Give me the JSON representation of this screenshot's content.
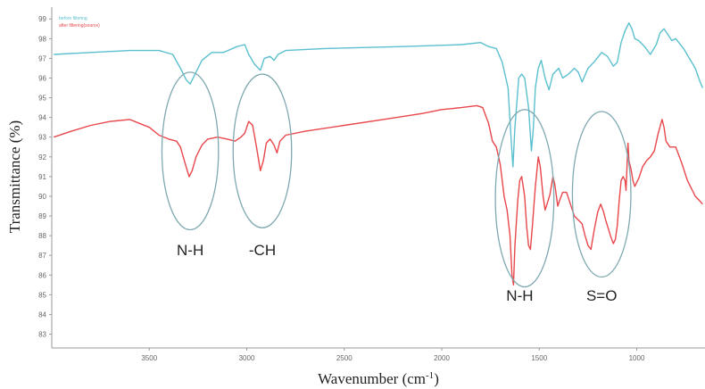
{
  "chart_data": {
    "type": "line",
    "title": "",
    "xlabel": "Wavenumber (cm",
    "xlabel_sup": "-1",
    "xlabel_close": ")",
    "ylabel": "Transmittance (%)",
    "xlim": [
      4000,
      650
    ],
    "ylim": [
      82.3,
      99.6
    ],
    "xticks": [
      3500,
      3000,
      2500,
      2000,
      1500,
      1000
    ],
    "yticks": [
      83,
      84,
      85,
      86,
      87,
      88,
      89,
      90,
      91,
      92,
      93,
      94,
      95,
      96,
      97,
      98,
      99
    ],
    "grid": false,
    "legend_position": "top-left",
    "series": [
      {
        "name": "before filtering",
        "color": "#5bc0ce",
        "points": [
          [
            3990,
            97.2
          ],
          [
            3800,
            97.3
          ],
          [
            3600,
            97.4
          ],
          [
            3450,
            97.4
          ],
          [
            3380,
            97.2
          ],
          [
            3340,
            96.5
          ],
          [
            3310,
            95.9
          ],
          [
            3290,
            95.7
          ],
          [
            3270,
            96.1
          ],
          [
            3230,
            96.9
          ],
          [
            3180,
            97.3
          ],
          [
            3120,
            97.3
          ],
          [
            3050,
            97.6
          ],
          [
            3010,
            97.7
          ],
          [
            2990,
            97.2
          ],
          [
            2960,
            96.7
          ],
          [
            2930,
            96.4
          ],
          [
            2910,
            97.0
          ],
          [
            2880,
            97.1
          ],
          [
            2860,
            96.9
          ],
          [
            2840,
            97.2
          ],
          [
            2800,
            97.4
          ],
          [
            2600,
            97.5
          ],
          [
            2200,
            97.6
          ],
          [
            1900,
            97.7
          ],
          [
            1800,
            97.8
          ],
          [
            1760,
            97.6
          ],
          [
            1720,
            97.5
          ],
          [
            1690,
            96.8
          ],
          [
            1660,
            95.5
          ],
          [
            1645,
            93.0
          ],
          [
            1635,
            91.5
          ],
          [
            1625,
            93.5
          ],
          [
            1605,
            96.0
          ],
          [
            1590,
            96.2
          ],
          [
            1575,
            96.0
          ],
          [
            1555,
            94.5
          ],
          [
            1540,
            92.3
          ],
          [
            1530,
            93.5
          ],
          [
            1520,
            95.5
          ],
          [
            1505,
            96.5
          ],
          [
            1490,
            96.9
          ],
          [
            1470,
            96.0
          ],
          [
            1450,
            95.4
          ],
          [
            1430,
            96.2
          ],
          [
            1400,
            96.5
          ],
          [
            1380,
            96.0
          ],
          [
            1350,
            96.2
          ],
          [
            1320,
            96.5
          ],
          [
            1300,
            96.3
          ],
          [
            1280,
            95.8
          ],
          [
            1250,
            96.5
          ],
          [
            1220,
            96.8
          ],
          [
            1180,
            97.3
          ],
          [
            1150,
            97.1
          ],
          [
            1120,
            96.6
          ],
          [
            1100,
            96.8
          ],
          [
            1080,
            97.8
          ],
          [
            1060,
            98.4
          ],
          [
            1040,
            98.8
          ],
          [
            1025,
            98.5
          ],
          [
            1010,
            98.0
          ],
          [
            990,
            97.9
          ],
          [
            960,
            97.6
          ],
          [
            930,
            97.2
          ],
          [
            900,
            97.7
          ],
          [
            880,
            98.3
          ],
          [
            860,
            98.5
          ],
          [
            840,
            98.2
          ],
          [
            820,
            97.9
          ],
          [
            800,
            98.0
          ],
          [
            760,
            97.5
          ],
          [
            730,
            97.0
          ],
          [
            700,
            96.5
          ],
          [
            675,
            95.8
          ],
          [
            662,
            95.5
          ]
        ]
      },
      {
        "name": "after filtering(source)",
        "color": "#e8474c",
        "points": [
          [
            3990,
            93.0
          ],
          [
            3900,
            93.3
          ],
          [
            3800,
            93.6
          ],
          [
            3700,
            93.8
          ],
          [
            3600,
            93.9
          ],
          [
            3550,
            93.7
          ],
          [
            3500,
            93.5
          ],
          [
            3450,
            93.1
          ],
          [
            3400,
            92.9
          ],
          [
            3360,
            92.8
          ],
          [
            3340,
            92.5
          ],
          [
            3320,
            91.8
          ],
          [
            3305,
            91.3
          ],
          [
            3295,
            91.0
          ],
          [
            3280,
            91.3
          ],
          [
            3260,
            92.0
          ],
          [
            3230,
            92.6
          ],
          [
            3200,
            92.9
          ],
          [
            3150,
            93.0
          ],
          [
            3100,
            92.9
          ],
          [
            3060,
            92.8
          ],
          [
            3030,
            93.0
          ],
          [
            3010,
            93.2
          ],
          [
            2990,
            93.8
          ],
          [
            2970,
            93.6
          ],
          [
            2950,
            92.5
          ],
          [
            2930,
            91.3
          ],
          [
            2915,
            91.8
          ],
          [
            2900,
            92.7
          ],
          [
            2880,
            92.9
          ],
          [
            2860,
            92.6
          ],
          [
            2845,
            92.2
          ],
          [
            2830,
            92.8
          ],
          [
            2800,
            93.1
          ],
          [
            2700,
            93.3
          ],
          [
            2500,
            93.6
          ],
          [
            2300,
            93.9
          ],
          [
            2100,
            94.2
          ],
          [
            2000,
            94.4
          ],
          [
            1900,
            94.5
          ],
          [
            1820,
            94.6
          ],
          [
            1790,
            94.5
          ],
          [
            1760,
            93.7
          ],
          [
            1740,
            92.8
          ],
          [
            1720,
            92.5
          ],
          [
            1700,
            91.6
          ],
          [
            1680,
            90.0
          ],
          [
            1665,
            89.3
          ],
          [
            1650,
            88.0
          ],
          [
            1640,
            86.0
          ],
          [
            1632,
            85.5
          ],
          [
            1625,
            87.5
          ],
          [
            1610,
            89.8
          ],
          [
            1600,
            90.8
          ],
          [
            1590,
            91.0
          ],
          [
            1575,
            90.0
          ],
          [
            1565,
            88.5
          ],
          [
            1555,
            87.5
          ],
          [
            1545,
            87.3
          ],
          [
            1535,
            88.5
          ],
          [
            1520,
            90.5
          ],
          [
            1505,
            92.0
          ],
          [
            1495,
            91.5
          ],
          [
            1480,
            90.0
          ],
          [
            1470,
            89.3
          ],
          [
            1460,
            89.6
          ],
          [
            1445,
            90.1
          ],
          [
            1430,
            91.0
          ],
          [
            1420,
            90.6
          ],
          [
            1405,
            89.5
          ],
          [
            1395,
            89.8
          ],
          [
            1380,
            90.2
          ],
          [
            1360,
            90.2
          ],
          [
            1340,
            89.6
          ],
          [
            1320,
            89.0
          ],
          [
            1300,
            88.8
          ],
          [
            1280,
            88.6
          ],
          [
            1265,
            88.0
          ],
          [
            1250,
            87.5
          ],
          [
            1235,
            87.3
          ],
          [
            1220,
            88.2
          ],
          [
            1200,
            89.2
          ],
          [
            1185,
            89.6
          ],
          [
            1170,
            89.2
          ],
          [
            1160,
            88.8
          ],
          [
            1150,
            88.5
          ],
          [
            1135,
            88.0
          ],
          [
            1120,
            87.6
          ],
          [
            1110,
            87.8
          ],
          [
            1100,
            88.5
          ],
          [
            1090,
            89.8
          ],
          [
            1080,
            90.8
          ],
          [
            1070,
            91.0
          ],
          [
            1060,
            90.8
          ],
          [
            1055,
            90.3
          ],
          [
            1050,
            91.5
          ],
          [
            1045,
            92.7
          ],
          [
            1040,
            91.8
          ],
          [
            1030,
            91.4
          ],
          [
            1020,
            90.8
          ],
          [
            1010,
            90.5
          ],
          [
            990,
            90.9
          ],
          [
            970,
            91.5
          ],
          [
            950,
            91.8
          ],
          [
            930,
            92.0
          ],
          [
            910,
            92.3
          ],
          [
            890,
            93.2
          ],
          [
            870,
            93.9
          ],
          [
            860,
            93.5
          ],
          [
            850,
            92.8
          ],
          [
            830,
            92.5
          ],
          [
            800,
            92.5
          ],
          [
            770,
            91.7
          ],
          [
            740,
            90.8
          ],
          [
            720,
            90.4
          ],
          [
            700,
            90.0
          ],
          [
            680,
            89.8
          ],
          [
            662,
            89.6
          ]
        ]
      }
    ],
    "annotations": [
      {
        "text": "N-H",
        "x": 3290,
        "y": 87.0,
        "ellipse": {
          "cx": 3290,
          "cy": 92.3,
          "rx": 145,
          "ry": 4.0
        }
      },
      {
        "text": "-CH",
        "x": 2920,
        "y": 87.0,
        "ellipse": {
          "cx": 2920,
          "cy": 92.3,
          "rx": 150,
          "ry": 3.9
        }
      },
      {
        "text": "N-H",
        "x": 1600,
        "y": 84.7,
        "ellipse": {
          "cx": 1575,
          "cy": 89.9,
          "rx": 150,
          "ry": 4.5
        }
      },
      {
        "text": "S=O",
        "x": 1180,
        "y": 84.7,
        "ellipse": {
          "cx": 1180,
          "cy": 90.1,
          "rx": 150,
          "ry": 4.2
        }
      }
    ]
  }
}
